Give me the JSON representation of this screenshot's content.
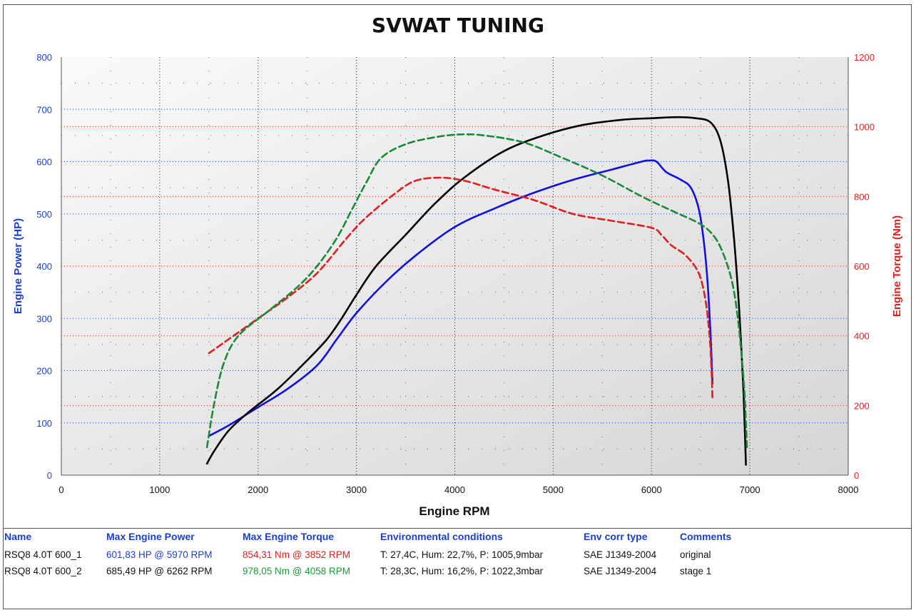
{
  "chart_data": {
    "type": "line",
    "title": "SVWAT TUNING",
    "xlabel": "Engine RPM",
    "ylabel_left": "Engine Power (HP)",
    "ylabel_right": "Engine Torque (Nm)",
    "xlim": [
      0,
      8000
    ],
    "ylim_left": [
      0,
      800
    ],
    "ylim_right": [
      0,
      1200
    ],
    "x_ticks": [
      "0",
      "1000",
      "2000",
      "3000",
      "4000",
      "5000",
      "6000",
      "7000",
      "8000"
    ],
    "y_left_ticks": [
      "0",
      "100",
      "200",
      "300",
      "400",
      "500",
      "600",
      "700",
      "800"
    ],
    "y_right_ticks": [
      "0",
      "200",
      "400",
      "600",
      "800",
      "1000",
      "1200"
    ],
    "grid": true,
    "colors": {
      "left_axis": "#1a3fd0",
      "right_axis": "#e01e1e",
      "power_original": "#1010e0",
      "power_stage1": "#000000",
      "torque_original": "#e01e1e",
      "torque_stage1": "#1a8a3a"
    },
    "series": [
      {
        "key": "power_original",
        "axis": "left",
        "dash": false,
        "x": [
          1500,
          1700,
          2000,
          2300,
          2600,
          2800,
          3000,
          3300,
          3600,
          4000,
          4400,
          4800,
          5200,
          5600,
          5900,
          5970,
          6050,
          6150,
          6300,
          6400,
          6480,
          6530,
          6570,
          6600,
          6620
        ],
        "y": [
          75,
          95,
          130,
          165,
          210,
          260,
          310,
          370,
          420,
          475,
          510,
          540,
          565,
          585,
          600,
          602,
          600,
          580,
          565,
          550,
          510,
          450,
          370,
          270,
          175
        ]
      },
      {
        "key": "power_stage1",
        "axis": "left",
        "dash": false,
        "x": [
          1480,
          1550,
          1700,
          1900,
          2200,
          2500,
          2700,
          2850,
          3000,
          3200,
          3500,
          3800,
          4100,
          4500,
          4900,
          5300,
          5700,
          6000,
          6262,
          6450,
          6600,
          6700,
          6780,
          6840,
          6890,
          6930,
          6950,
          6960
        ],
        "y": [
          22,
          45,
          85,
          120,
          165,
          220,
          260,
          300,
          345,
          400,
          460,
          520,
          570,
          620,
          650,
          670,
          680,
          683,
          685,
          683,
          675,
          640,
          560,
          450,
          320,
          180,
          80,
          20
        ]
      },
      {
        "key": "torque_original",
        "axis": "right",
        "dash": true,
        "x": [
          1500,
          1700,
          2000,
          2300,
          2600,
          2900,
          3100,
          3400,
          3600,
          3852,
          4100,
          4400,
          4800,
          5200,
          5600,
          6000,
          6100,
          6200,
          6350,
          6480,
          6550,
          6590,
          6610,
          6620
        ],
        "y": [
          350,
          390,
          450,
          510,
          580,
          680,
          740,
          810,
          845,
          854,
          845,
          820,
          790,
          750,
          730,
          710,
          690,
          660,
          630,
          580,
          500,
          400,
          300,
          220
        ]
      },
      {
        "key": "torque_stage1",
        "axis": "right",
        "dash": true,
        "x": [
          1480,
          1550,
          1650,
          1800,
          2100,
          2400,
          2600,
          2800,
          2950,
          3100,
          3250,
          3500,
          3800,
          4058,
          4300,
          4700,
          5100,
          5500,
          5900,
          6200,
          6500,
          6650,
          6750,
          6830,
          6890,
          6940,
          6960,
          6970
        ],
        "y": [
          80,
          200,
          320,
          400,
          470,
          540,
          600,
          680,
          760,
          840,
          910,
          950,
          970,
          978,
          975,
          955,
          910,
          860,
          800,
          760,
          720,
          680,
          620,
          540,
          420,
          260,
          150,
          80
        ]
      }
    ],
    "results_table": {
      "headers": [
        "Name",
        "Max Engine Power",
        "Max Engine Torque",
        "Environmental conditions",
        "Env corr type",
        "Comments"
      ],
      "rows": [
        {
          "name": "RSQ8 4.0T 600_1",
          "max_power": "601,83 HP @ 5970 RPM",
          "max_torque": "854,31 Nm @ 3852 RPM",
          "env": "T: 27,4C, Hum: 22,7%, P: 1005,9mbar",
          "corr": "SAE J1349-2004",
          "comment": "original"
        },
        {
          "name": "RSQ8 4.0T 600_2",
          "max_power": "685,49 HP @ 6262 RPM",
          "max_torque": "978,05 Nm @ 4058 RPM",
          "env": "T: 28,3C, Hum: 16,2%, P: 1022,3mbar",
          "corr": "SAE J1349-2004",
          "comment": "stage 1"
        }
      ]
    }
  }
}
